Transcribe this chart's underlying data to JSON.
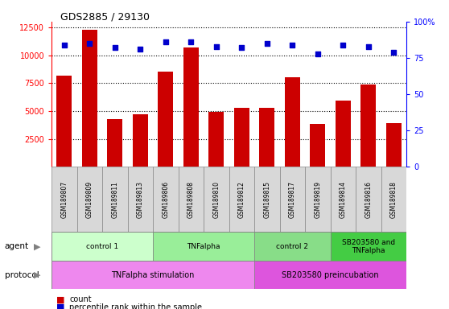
{
  "title": "GDS2885 / 29130",
  "samples": [
    "GSM189807",
    "GSM189809",
    "GSM189811",
    "GSM189813",
    "GSM189806",
    "GSM189808",
    "GSM189810",
    "GSM189812",
    "GSM189815",
    "GSM189817",
    "GSM189819",
    "GSM189814",
    "GSM189816",
    "GSM189818"
  ],
  "counts": [
    8200,
    12300,
    4300,
    4700,
    8500,
    10700,
    4950,
    5300,
    5250,
    8050,
    3850,
    5900,
    7400,
    3900
  ],
  "percentile_ranks": [
    84,
    85,
    82,
    81,
    86,
    86,
    83,
    82,
    85,
    84,
    78,
    84,
    83,
    79
  ],
  "ylim_left": [
    0,
    13000
  ],
  "ylim_right": [
    0,
    100
  ],
  "yticks_left": [
    2500,
    5000,
    7500,
    10000,
    12500
  ],
  "yticks_right": [
    0,
    25,
    50,
    75,
    100
  ],
  "bar_color": "#cc0000",
  "scatter_color": "#0000cc",
  "agent_groups": [
    {
      "label": "control 1",
      "start": 0,
      "end": 4,
      "color": "#ccffcc"
    },
    {
      "label": "TNFalpha",
      "start": 4,
      "end": 8,
      "color": "#99ee99"
    },
    {
      "label": "control 2",
      "start": 8,
      "end": 11,
      "color": "#88dd88"
    },
    {
      "label": "SB203580 and\nTNFalpha",
      "start": 11,
      "end": 14,
      "color": "#44cc44"
    }
  ],
  "protocol_groups": [
    {
      "label": "TNFalpha stimulation",
      "start": 0,
      "end": 8,
      "color": "#ee88ee"
    },
    {
      "label": "SB203580 preincubation",
      "start": 8,
      "end": 14,
      "color": "#dd55dd"
    }
  ],
  "agent_label": "agent",
  "protocol_label": "protocol",
  "legend_count_label": "count",
  "legend_pct_label": "percentile rank within the sample",
  "sample_bg_color": "#d8d8d8",
  "sample_border_color": "#888888"
}
